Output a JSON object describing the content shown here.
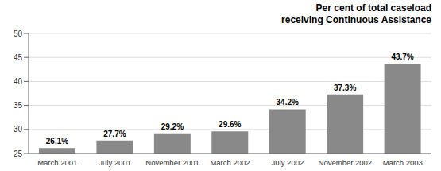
{
  "chart_data": {
    "type": "bar",
    "title": "Per cent of total caseload\nreceiving Continuous Assistance",
    "categories": [
      "March 2001",
      "July 2001",
      "November 2001",
      "March 2002",
      "July 2002",
      "November 2002",
      "March 2003"
    ],
    "values": [
      26.1,
      27.7,
      29.2,
      29.6,
      34.2,
      37.3,
      43.7
    ],
    "value_labels": [
      "26.1%",
      "27.7%",
      "29.2%",
      "29.6%",
      "34.2%",
      "37.3%",
      "43.7%"
    ],
    "data_labels": true,
    "color": "#898989",
    "ylim": [
      25,
      50
    ],
    "yticks": [
      25,
      30,
      35,
      40,
      45,
      50
    ],
    "grid": true
  }
}
